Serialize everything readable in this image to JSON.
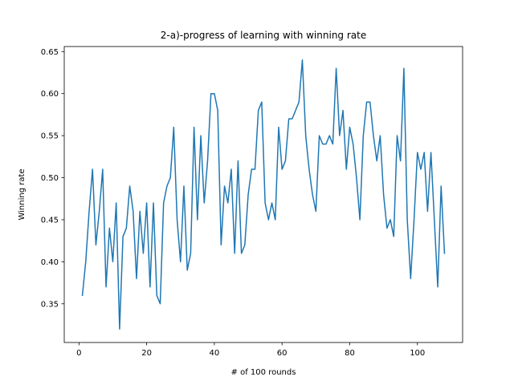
{
  "chart_data": {
    "type": "line",
    "title": "2-a)-progress of learning with winning rate",
    "xlabel": "# of 100 rounds",
    "ylabel": "Winning rate",
    "xlim": [
      -4.35,
      113.35
    ],
    "ylim": [
      0.304,
      0.656
    ],
    "xticks": [
      0,
      20,
      40,
      60,
      80,
      100
    ],
    "yticks": [
      0.35,
      0.4,
      0.45,
      0.5,
      0.55,
      0.6,
      0.65
    ],
    "ytick_labels": [
      "0.35",
      "0.40",
      "0.45",
      "0.50",
      "0.55",
      "0.60",
      "0.65"
    ],
    "grid": false,
    "series": [
      {
        "color": "#1f77b4",
        "x": [
          1,
          2,
          3,
          4,
          5,
          6,
          7,
          8,
          9,
          10,
          11,
          12,
          13,
          14,
          15,
          16,
          17,
          18,
          19,
          20,
          21,
          22,
          23,
          24,
          25,
          26,
          27,
          28,
          29,
          30,
          31,
          32,
          33,
          34,
          35,
          36,
          37,
          38,
          39,
          40,
          41,
          42,
          43,
          44,
          45,
          46,
          47,
          48,
          49,
          50,
          51,
          52,
          53,
          54,
          55,
          56,
          57,
          58,
          59,
          60,
          61,
          62,
          63,
          64,
          65,
          66,
          67,
          68,
          69,
          70,
          71,
          72,
          73,
          74,
          75,
          76,
          77,
          78,
          79,
          80,
          81,
          82,
          83,
          84,
          85,
          86,
          87,
          88,
          89,
          90,
          91,
          92,
          93,
          94,
          95,
          96,
          97,
          98,
          99,
          100,
          101,
          102,
          103,
          104,
          105,
          106,
          107,
          108
        ],
        "y": [
          0.36,
          0.4,
          0.46,
          0.51,
          0.42,
          0.46,
          0.51,
          0.37,
          0.44,
          0.4,
          0.47,
          0.32,
          0.43,
          0.44,
          0.49,
          0.46,
          0.38,
          0.46,
          0.41,
          0.47,
          0.37,
          0.47,
          0.36,
          0.35,
          0.47,
          0.49,
          0.5,
          0.56,
          0.45,
          0.4,
          0.49,
          0.39,
          0.41,
          0.56,
          0.45,
          0.55,
          0.47,
          0.52,
          0.6,
          0.6,
          0.58,
          0.42,
          0.49,
          0.47,
          0.51,
          0.41,
          0.52,
          0.41,
          0.42,
          0.48,
          0.51,
          0.51,
          0.58,
          0.59,
          0.47,
          0.45,
          0.47,
          0.45,
          0.56,
          0.51,
          0.52,
          0.57,
          0.57,
          0.58,
          0.59,
          0.64,
          0.55,
          0.51,
          0.48,
          0.46,
          0.55,
          0.54,
          0.54,
          0.55,
          0.54,
          0.63,
          0.55,
          0.58,
          0.51,
          0.56,
          0.54,
          0.5,
          0.45,
          0.55,
          0.59,
          0.59,
          0.55,
          0.52,
          0.55,
          0.48,
          0.44,
          0.45,
          0.43,
          0.55,
          0.52,
          0.63,
          0.45,
          0.38,
          0.45,
          0.53,
          0.51,
          0.53,
          0.46,
          0.53,
          0.45,
          0.37,
          0.49,
          0.41
        ]
      }
    ]
  }
}
